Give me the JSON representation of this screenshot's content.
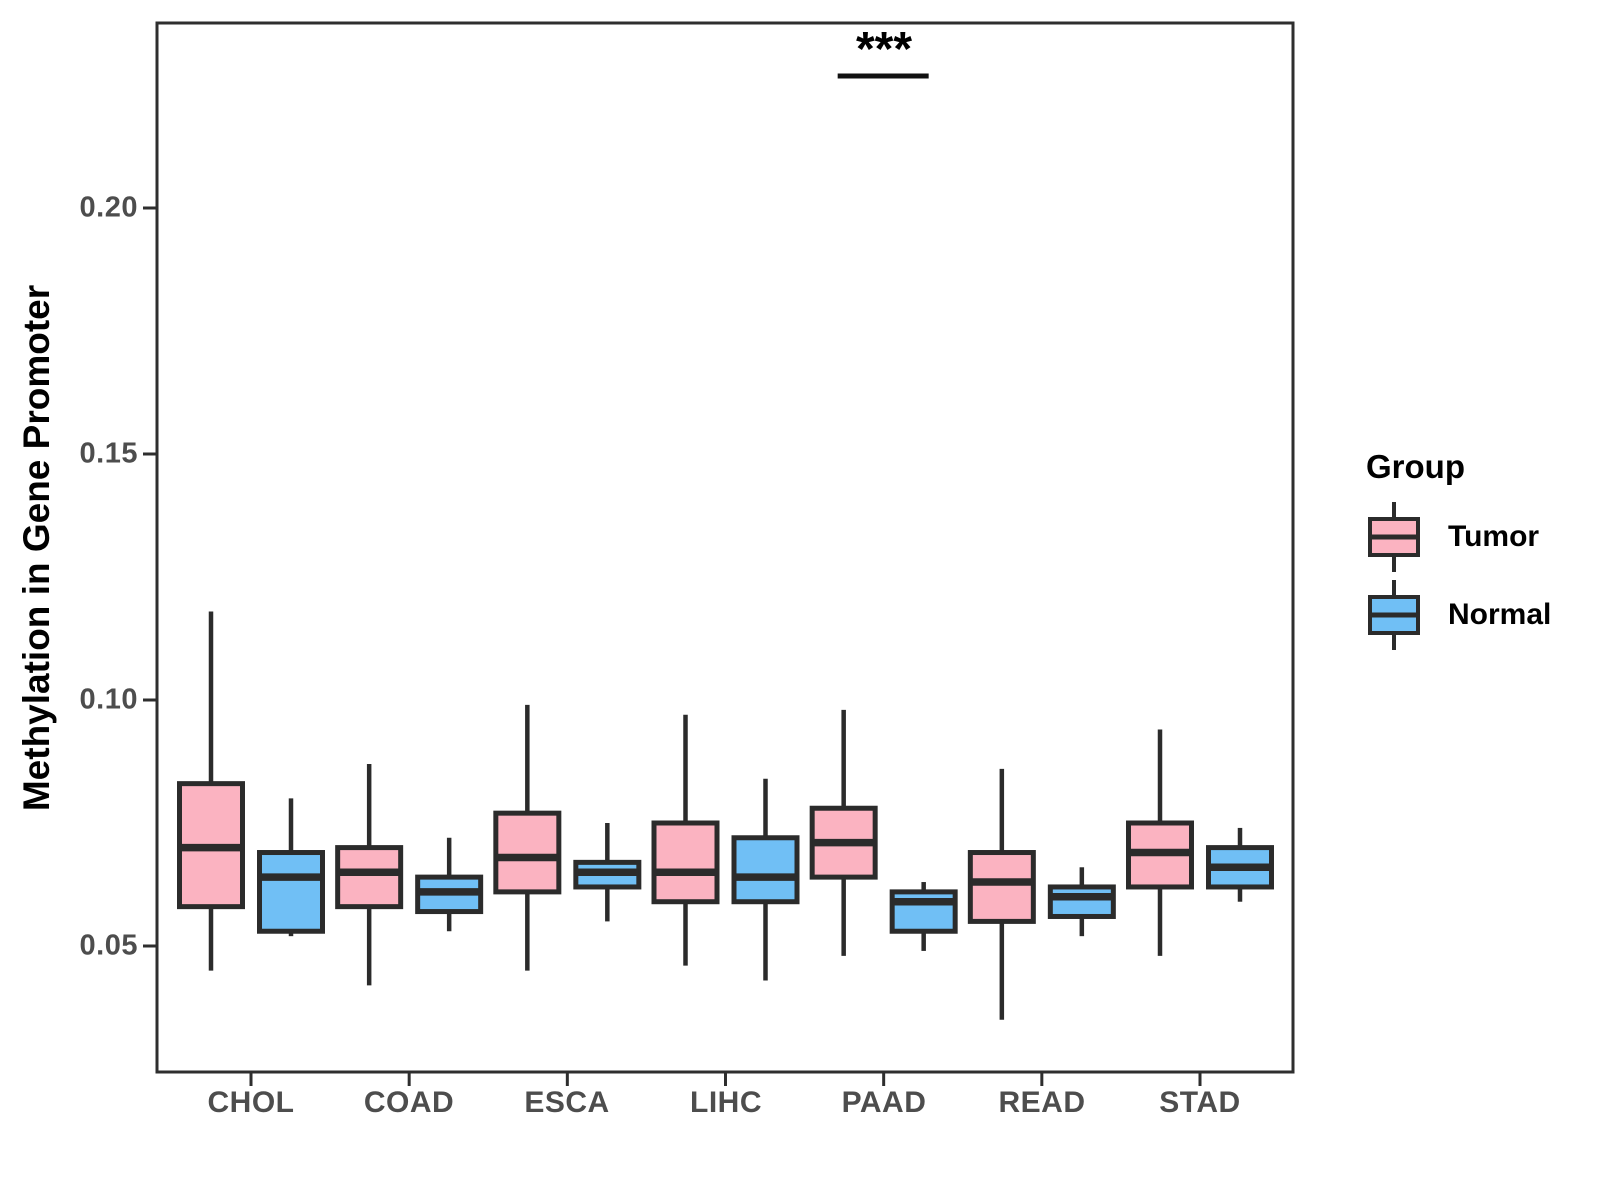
{
  "chart_data": {
    "type": "boxplot",
    "title": "",
    "xlabel": "",
    "ylabel": "Methylation in Gene Promoter",
    "categories": [
      "CHOL",
      "COAD",
      "ESCA",
      "LIHC",
      "PAAD",
      "READ",
      "STAD"
    ],
    "ytick_labels": [
      "0.05",
      "0.10",
      "0.15",
      "0.20"
    ],
    "ytick_values": [
      0.05,
      0.1,
      0.15,
      0.2
    ],
    "ylim": [
      0.024,
      0.238
    ],
    "grid": false,
    "legend_position": "right",
    "legend_title": "Group",
    "series": [
      {
        "name": "Tumor",
        "color": "#FBB3C1",
        "boxes": [
          {
            "category": "CHOL",
            "whisker_low": 0.045,
            "q1": 0.058,
            "median": 0.07,
            "q3": 0.083,
            "whisker_high": 0.118
          },
          {
            "category": "COAD",
            "whisker_low": 0.042,
            "q1": 0.058,
            "median": 0.065,
            "q3": 0.07,
            "whisker_high": 0.087
          },
          {
            "category": "ESCA",
            "whisker_low": 0.045,
            "q1": 0.061,
            "median": 0.068,
            "q3": 0.077,
            "whisker_high": 0.099
          },
          {
            "category": "LIHC",
            "whisker_low": 0.046,
            "q1": 0.059,
            "median": 0.065,
            "q3": 0.075,
            "whisker_high": 0.097
          },
          {
            "category": "PAAD",
            "whisker_low": 0.048,
            "q1": 0.064,
            "median": 0.071,
            "q3": 0.078,
            "whisker_high": 0.098
          },
          {
            "category": "READ",
            "whisker_low": 0.035,
            "q1": 0.055,
            "median": 0.063,
            "q3": 0.069,
            "whisker_high": 0.086
          },
          {
            "category": "STAD",
            "whisker_low": 0.048,
            "q1": 0.062,
            "median": 0.069,
            "q3": 0.075,
            "whisker_high": 0.094
          }
        ]
      },
      {
        "name": "Normal",
        "color": "#70BFF5",
        "boxes": [
          {
            "category": "CHOL",
            "whisker_low": 0.052,
            "q1": 0.053,
            "median": 0.064,
            "q3": 0.069,
            "whisker_high": 0.08
          },
          {
            "category": "COAD",
            "whisker_low": 0.053,
            "q1": 0.057,
            "median": 0.061,
            "q3": 0.064,
            "whisker_high": 0.072
          },
          {
            "category": "ESCA",
            "whisker_low": 0.055,
            "q1": 0.062,
            "median": 0.065,
            "q3": 0.067,
            "whisker_high": 0.075
          },
          {
            "category": "LIHC",
            "whisker_low": 0.043,
            "q1": 0.059,
            "median": 0.064,
            "q3": 0.072,
            "whisker_high": 0.084
          },
          {
            "category": "PAAD",
            "whisker_low": 0.049,
            "q1": 0.053,
            "median": 0.059,
            "q3": 0.061,
            "whisker_high": 0.063
          },
          {
            "category": "READ",
            "whisker_low": 0.052,
            "q1": 0.056,
            "median": 0.06,
            "q3": 0.062,
            "whisker_high": 0.066
          },
          {
            "category": "STAD",
            "whisker_low": 0.059,
            "q1": 0.062,
            "median": 0.066,
            "q3": 0.07,
            "whisker_high": 0.074
          }
        ]
      }
    ],
    "annotations": [
      {
        "type": "significance",
        "label": "***",
        "category": "PAAD"
      }
    ]
  },
  "colors": {
    "box_stroke": "#2b2b2b",
    "axis_stroke": "#2e2e2e",
    "tick_text": "#4d4d4d",
    "annotation": "#111111"
  }
}
